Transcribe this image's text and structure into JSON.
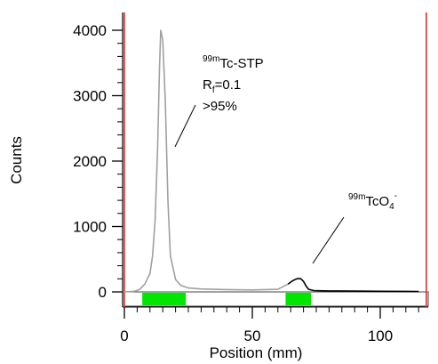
{
  "chart_data": {
    "type": "line",
    "xlabel": "Position (mm)",
    "ylabel": "Counts",
    "xlim": [
      0,
      120
    ],
    "ylim": [
      0,
      4000
    ],
    "x_ticks": [
      0,
      50,
      100
    ],
    "y_ticks": [
      0,
      1000,
      2000,
      3000,
      4000
    ],
    "grid": false,
    "series": [
      {
        "color": "#a0a0a0",
        "x": [
          0,
          4,
          6,
          8,
          10,
          11,
          12,
          13,
          13.7,
          14.2,
          15,
          16,
          17,
          18,
          20,
          22,
          25,
          30,
          40,
          50,
          60,
          62,
          64
        ],
        "y": [
          0,
          10,
          40,
          120,
          280,
          550,
          1100,
          2200,
          3400,
          4000,
          3850,
          2900,
          1400,
          550,
          190,
          100,
          60,
          45,
          35,
          30,
          40,
          80,
          120
        ]
      },
      {
        "color": "#000000",
        "x": [
          64,
          65,
          66,
          67,
          68,
          69,
          70,
          71,
          72,
          74,
          80,
          90,
          100,
          110,
          115
        ],
        "y": [
          120,
          150,
          175,
          195,
          205,
          200,
          160,
          90,
          40,
          20,
          15,
          12,
          10,
          8,
          5
        ]
      }
    ],
    "regions": [
      {
        "color": "#00e600",
        "x_start": 7,
        "x_end": 24
      },
      {
        "color": "#00e600",
        "x_start": 63,
        "x_end": 73
      }
    ],
    "boundaries": {
      "color": "#e03030",
      "x": [
        0,
        118
      ]
    },
    "annotations": [
      {
        "sup": "99m",
        "text": "Tc-STP"
      },
      {
        "text_main": "R",
        "text_sub": "f",
        "text_rest": "=0.1"
      },
      {
        "text": ">95%"
      },
      {
        "sup": "99m",
        "text": "TcO",
        "sub": "4",
        "sup_after": "-"
      }
    ]
  }
}
